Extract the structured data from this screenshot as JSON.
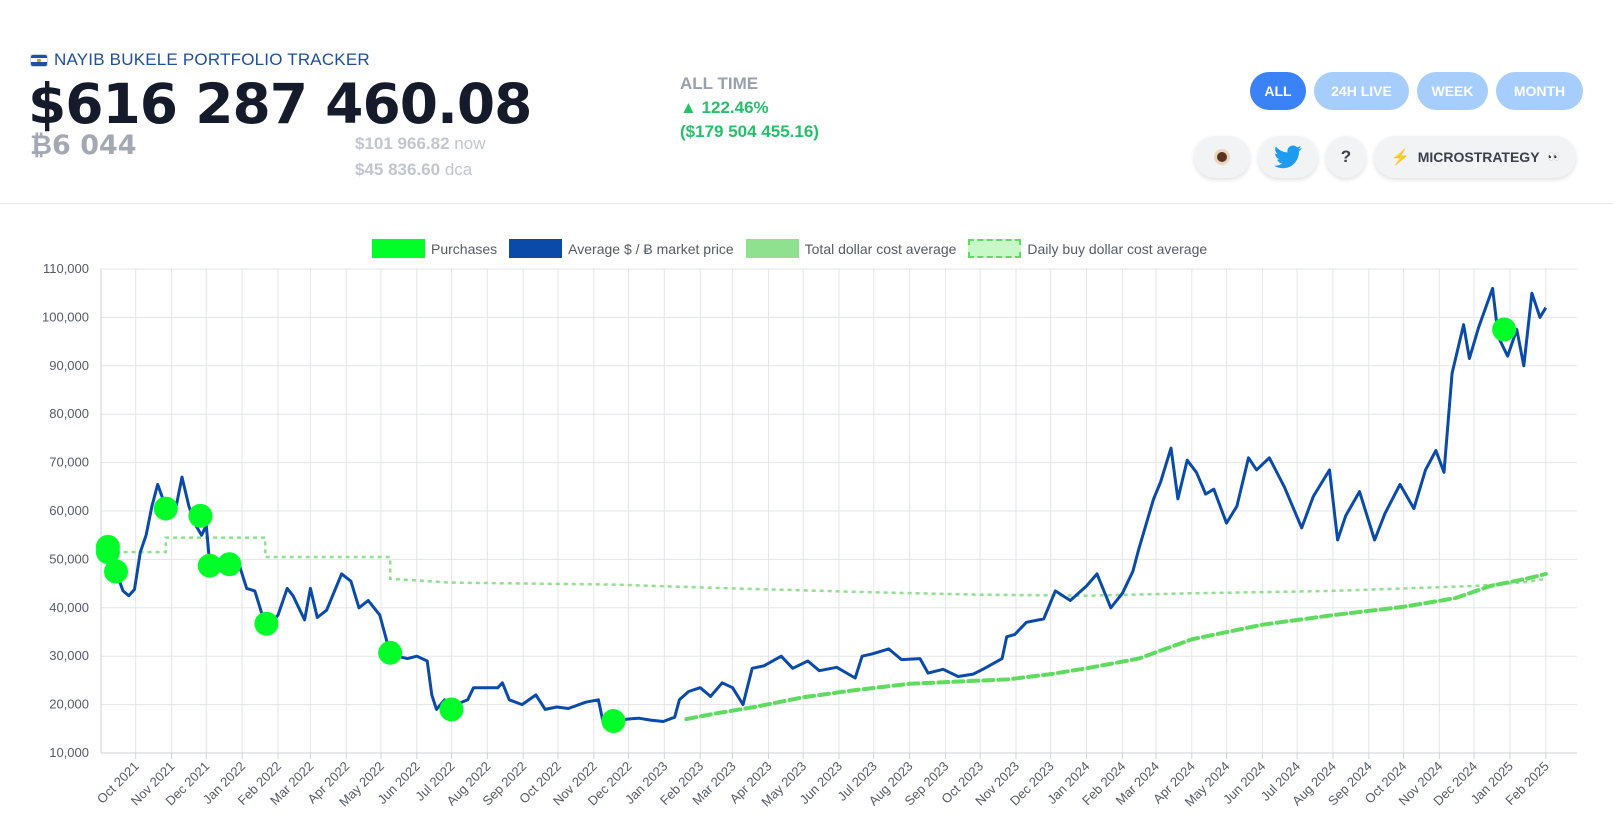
{
  "header": {
    "tracker_title": "NAYIB BUKELE PORTFOLIO TRACKER",
    "portfolio_value": "$616 287 460.08",
    "btc_amount": "₿6 044",
    "price_now_value": "$101 966.82",
    "price_now_label": "now",
    "price_dca_value": "$45 836.60",
    "price_dca_label": "dca"
  },
  "performance": {
    "label": "ALL TIME",
    "percent": "▲ 122.46%",
    "usd": "($179 504 455.16)"
  },
  "ranges": {
    "all": "ALL",
    "h24": "24H LIVE",
    "week": "WEEK",
    "month": "MONTH",
    "active": "ALL"
  },
  "tools": {
    "coffee_icon": "coffee-icon",
    "twitter_icon": "twitter-icon",
    "help": "?",
    "microstrategy": "MICROSTRATEGY",
    "eyes": "👀"
  },
  "chart_data": {
    "type": "line",
    "xlabel": "",
    "ylabel": "",
    "ylim": [
      10000,
      110000
    ],
    "yticks": [
      10000,
      20000,
      30000,
      40000,
      50000,
      60000,
      70000,
      80000,
      90000,
      100000,
      110000
    ],
    "ytick_labels": [
      "10,000",
      "20,000",
      "30,000",
      "40,000",
      "50,000",
      "60,000",
      "70,000",
      "80,000",
      "90,000",
      "100,000",
      "110,000"
    ],
    "xlim": [
      "2021-09-01",
      "2025-02-28"
    ],
    "xticks": [
      "2021-10-01",
      "2021-11-01",
      "2021-12-01",
      "2022-01-01",
      "2022-02-01",
      "2022-03-01",
      "2022-04-01",
      "2022-05-01",
      "2022-06-01",
      "2022-07-01",
      "2022-08-01",
      "2022-09-01",
      "2022-10-01",
      "2022-11-01",
      "2022-12-01",
      "2023-01-01",
      "2023-02-01",
      "2023-03-01",
      "2023-04-01",
      "2023-05-01",
      "2023-06-01",
      "2023-07-01",
      "2023-08-01",
      "2023-09-01",
      "2023-10-01",
      "2023-11-01",
      "2023-12-01",
      "2024-01-01",
      "2024-02-01",
      "2024-03-01",
      "2024-04-01",
      "2024-05-01",
      "2024-06-01",
      "2024-07-01",
      "2024-08-01",
      "2024-09-01",
      "2024-10-01",
      "2024-11-01",
      "2024-12-01",
      "2025-01-01",
      "2025-02-01"
    ],
    "xtick_labels": [
      "Oct 2021",
      "Nov 2021",
      "Dec 2021",
      "Jan 2022",
      "Feb 2022",
      "Mar 2022",
      "Apr 2022",
      "May 2022",
      "Jun 2022",
      "Jul 2022",
      "Aug 2022",
      "Sep 2022",
      "Oct 2022",
      "Nov 2022",
      "Dec 2022",
      "Jan 2023",
      "Feb 2023",
      "Mar 2023",
      "Apr 2023",
      "May 2023",
      "Jun 2023",
      "Jul 2023",
      "Aug 2023",
      "Sep 2023",
      "Oct 2023",
      "Nov 2023",
      "Dec 2023",
      "Jan 2024",
      "Feb 2024",
      "Mar 2024",
      "Apr 2024",
      "May 2024",
      "Jun 2024",
      "Jul 2024",
      "Aug 2024",
      "Sep 2024",
      "Oct 2024",
      "Nov 2024",
      "Dec 2024",
      "Jan 2025",
      "Feb 2025"
    ],
    "grid": true,
    "legend_position": "top",
    "legend": [
      "Purchases",
      "Average $ / Ƀ market price",
      "Total dollar cost average",
      "Daily buy dollar cost average"
    ],
    "colors": {
      "purchases": "#00ff29",
      "price": "#0a4aa8",
      "total_dca": "#8fe08f",
      "daily_dca": "#5fdb5f"
    },
    "series": [
      {
        "name": "Average $ / Ƀ market price",
        "style": "solid",
        "points": [
          [
            "2021-09-07",
            52600
          ],
          [
            "2021-09-10",
            47000
          ],
          [
            "2021-09-14",
            47500
          ],
          [
            "2021-09-20",
            43500
          ],
          [
            "2021-09-25",
            42500
          ],
          [
            "2021-09-30",
            43800
          ],
          [
            "2021-10-05",
            51500
          ],
          [
            "2021-10-10",
            55000
          ],
          [
            "2021-10-15",
            61000
          ],
          [
            "2021-10-20",
            65500
          ],
          [
            "2021-10-26",
            61500
          ],
          [
            "2021-11-01",
            61000
          ],
          [
            "2021-11-05",
            61000
          ],
          [
            "2021-11-10",
            67000
          ],
          [
            "2021-11-16",
            61000
          ],
          [
            "2021-11-22",
            57000
          ],
          [
            "2021-11-27",
            55000
          ],
          [
            "2021-12-01",
            57000
          ],
          [
            "2021-12-04",
            49000
          ],
          [
            "2021-12-10",
            48000
          ],
          [
            "2021-12-16",
            47500
          ],
          [
            "2021-12-22",
            48500
          ],
          [
            "2021-12-28",
            50000
          ],
          [
            "2022-01-05",
            44000
          ],
          [
            "2022-01-12",
            43500
          ],
          [
            "2022-01-21",
            36500
          ],
          [
            "2022-01-25",
            36500
          ],
          [
            "2022-02-01",
            38500
          ],
          [
            "2022-02-09",
            44000
          ],
          [
            "2022-02-14",
            42500
          ],
          [
            "2022-02-24",
            37500
          ],
          [
            "2022-03-01",
            44000
          ],
          [
            "2022-03-07",
            38000
          ],
          [
            "2022-03-15",
            39500
          ],
          [
            "2022-03-28",
            47000
          ],
          [
            "2022-04-05",
            45500
          ],
          [
            "2022-04-12",
            40000
          ],
          [
            "2022-04-20",
            41500
          ],
          [
            "2022-04-30",
            38500
          ],
          [
            "2022-05-09",
            30500
          ],
          [
            "2022-05-15",
            30000
          ],
          [
            "2022-05-24",
            29500
          ],
          [
            "2022-06-01",
            30000
          ],
          [
            "2022-06-10",
            29000
          ],
          [
            "2022-06-14",
            22000
          ],
          [
            "2022-06-18",
            19000
          ],
          [
            "2022-06-25",
            21000
          ],
          [
            "2022-06-30",
            19500
          ],
          [
            "2022-07-05",
            20000
          ],
          [
            "2022-07-15",
            21000
          ],
          [
            "2022-07-20",
            23500
          ],
          [
            "2022-07-30",
            23500
          ],
          [
            "2022-08-10",
            23500
          ],
          [
            "2022-08-14",
            24500
          ],
          [
            "2022-08-20",
            21000
          ],
          [
            "2022-08-31",
            20000
          ],
          [
            "2022-09-12",
            22000
          ],
          [
            "2022-09-20",
            19000
          ],
          [
            "2022-09-30",
            19500
          ],
          [
            "2022-10-10",
            19200
          ],
          [
            "2022-10-25",
            20500
          ],
          [
            "2022-11-05",
            21000
          ],
          [
            "2022-11-09",
            16500
          ],
          [
            "2022-11-18",
            16600
          ],
          [
            "2022-11-30",
            17000
          ],
          [
            "2022-12-10",
            17200
          ],
          [
            "2022-12-20",
            16800
          ],
          [
            "2022-12-31",
            16500
          ],
          [
            "2023-01-10",
            17400
          ],
          [
            "2023-01-14",
            21000
          ],
          [
            "2023-01-22",
            22700
          ],
          [
            "2023-02-01",
            23500
          ],
          [
            "2023-02-10",
            21700
          ],
          [
            "2023-02-20",
            24500
          ],
          [
            "2023-03-01",
            23500
          ],
          [
            "2023-03-10",
            20000
          ],
          [
            "2023-03-18",
            27500
          ],
          [
            "2023-03-28",
            28000
          ],
          [
            "2023-04-12",
            30000
          ],
          [
            "2023-04-22",
            27500
          ],
          [
            "2023-05-05",
            29000
          ],
          [
            "2023-05-15",
            27000
          ],
          [
            "2023-05-30",
            27700
          ],
          [
            "2023-06-15",
            25500
          ],
          [
            "2023-06-21",
            30000
          ],
          [
            "2023-06-30",
            30500
          ],
          [
            "2023-07-14",
            31500
          ],
          [
            "2023-07-25",
            29300
          ],
          [
            "2023-08-10",
            29500
          ],
          [
            "2023-08-17",
            26500
          ],
          [
            "2023-08-30",
            27300
          ],
          [
            "2023-09-12",
            25800
          ],
          [
            "2023-09-25",
            26300
          ],
          [
            "2023-10-05",
            27500
          ],
          [
            "2023-10-20",
            29500
          ],
          [
            "2023-10-24",
            34000
          ],
          [
            "2023-10-31",
            34500
          ],
          [
            "2023-11-10",
            37000
          ],
          [
            "2023-11-25",
            37700
          ],
          [
            "2023-12-05",
            43500
          ],
          [
            "2023-12-18",
            41500
          ],
          [
            "2024-01-01",
            44500
          ],
          [
            "2024-01-10",
            47000
          ],
          [
            "2024-01-22",
            40000
          ],
          [
            "2024-02-01",
            43000
          ],
          [
            "2024-02-10",
            47500
          ],
          [
            "2024-02-15",
            52000
          ],
          [
            "2024-02-28",
            62500
          ],
          [
            "2024-03-05",
            66000
          ],
          [
            "2024-03-14",
            73000
          ],
          [
            "2024-03-20",
            62500
          ],
          [
            "2024-03-28",
            70500
          ],
          [
            "2024-04-05",
            68000
          ],
          [
            "2024-04-13",
            63500
          ],
          [
            "2024-04-20",
            64500
          ],
          [
            "2024-05-01",
            57500
          ],
          [
            "2024-05-10",
            61000
          ],
          [
            "2024-05-20",
            71000
          ],
          [
            "2024-05-27",
            68500
          ],
          [
            "2024-06-07",
            71000
          ],
          [
            "2024-06-20",
            65000
          ],
          [
            "2024-07-05",
            56500
          ],
          [
            "2024-07-15",
            63000
          ],
          [
            "2024-07-29",
            68500
          ],
          [
            "2024-08-05",
            54000
          ],
          [
            "2024-08-12",
            59000
          ],
          [
            "2024-08-24",
            64000
          ],
          [
            "2024-09-06",
            54000
          ],
          [
            "2024-09-15",
            59500
          ],
          [
            "2024-09-28",
            65500
          ],
          [
            "2024-10-10",
            60500
          ],
          [
            "2024-10-20",
            68500
          ],
          [
            "2024-10-29",
            72500
          ],
          [
            "2024-11-05",
            68000
          ],
          [
            "2024-11-12",
            88500
          ],
          [
            "2024-11-22",
            98500
          ],
          [
            "2024-11-27",
            91500
          ],
          [
            "2024-12-05",
            98000
          ],
          [
            "2024-12-17",
            106000
          ],
          [
            "2024-12-22",
            96000
          ],
          [
            "2024-12-30",
            92000
          ],
          [
            "2025-01-07",
            97500
          ],
          [
            "2025-01-13",
            90000
          ],
          [
            "2025-01-20",
            105000
          ],
          [
            "2025-01-27",
            100000
          ],
          [
            "2025-02-01",
            102000
          ]
        ]
      },
      {
        "name": "Total dollar cost average",
        "style": "dashed",
        "points": [
          [
            "2023-01-20",
            17000
          ],
          [
            "2023-02-15",
            18200
          ],
          [
            "2023-03-20",
            19500
          ],
          [
            "2023-05-01",
            21500
          ],
          [
            "2023-06-15",
            23000
          ],
          [
            "2023-08-01",
            24300
          ],
          [
            "2023-09-15",
            24800
          ],
          [
            "2023-10-25",
            25200
          ],
          [
            "2023-12-01",
            26300
          ],
          [
            "2024-01-01",
            27500
          ],
          [
            "2024-02-15",
            29500
          ],
          [
            "2024-04-01",
            33500
          ],
          [
            "2024-06-01",
            36500
          ],
          [
            "2024-08-01",
            38500
          ],
          [
            "2024-10-01",
            40200
          ],
          [
            "2024-11-15",
            42000
          ],
          [
            "2024-12-15",
            44500
          ],
          [
            "2025-01-15",
            46000
          ],
          [
            "2025-02-01",
            47000
          ]
        ]
      },
      {
        "name": "Daily buy dollar cost average",
        "style": "dotted-step",
        "points": [
          [
            "2021-09-07",
            52000
          ],
          [
            "2021-09-15",
            51500
          ],
          [
            "2021-10-27",
            51500
          ],
          [
            "2021-10-27",
            54500
          ],
          [
            "2022-01-21",
            54500
          ],
          [
            "2022-01-21",
            50500
          ],
          [
            "2022-05-09",
            50500
          ],
          [
            "2022-05-09",
            46000
          ],
          [
            "2022-06-30",
            45200
          ],
          [
            "2022-11-18",
            44800
          ],
          [
            "2023-03-01",
            44000
          ],
          [
            "2023-07-01",
            43200
          ],
          [
            "2023-10-01",
            42700
          ],
          [
            "2024-01-01",
            42500
          ],
          [
            "2024-04-01",
            43000
          ],
          [
            "2024-08-01",
            43500
          ],
          [
            "2024-12-01",
            44500
          ],
          [
            "2025-01-15",
            45300
          ],
          [
            "2025-02-01",
            46000
          ]
        ]
      },
      {
        "name": "Purchases",
        "style": "points",
        "points": [
          [
            "2021-09-07",
            52600
          ],
          [
            "2021-09-07",
            51500
          ],
          [
            "2021-09-14",
            47500
          ],
          [
            "2021-10-27",
            60500
          ],
          [
            "2021-11-26",
            59000
          ],
          [
            "2021-12-04",
            48700
          ],
          [
            "2021-12-21",
            49000
          ],
          [
            "2022-01-22",
            36700
          ],
          [
            "2022-05-09",
            30700
          ],
          [
            "2022-07-01",
            19000
          ],
          [
            "2022-11-18",
            16600
          ],
          [
            "2024-12-27",
            97500
          ]
        ]
      }
    ]
  }
}
